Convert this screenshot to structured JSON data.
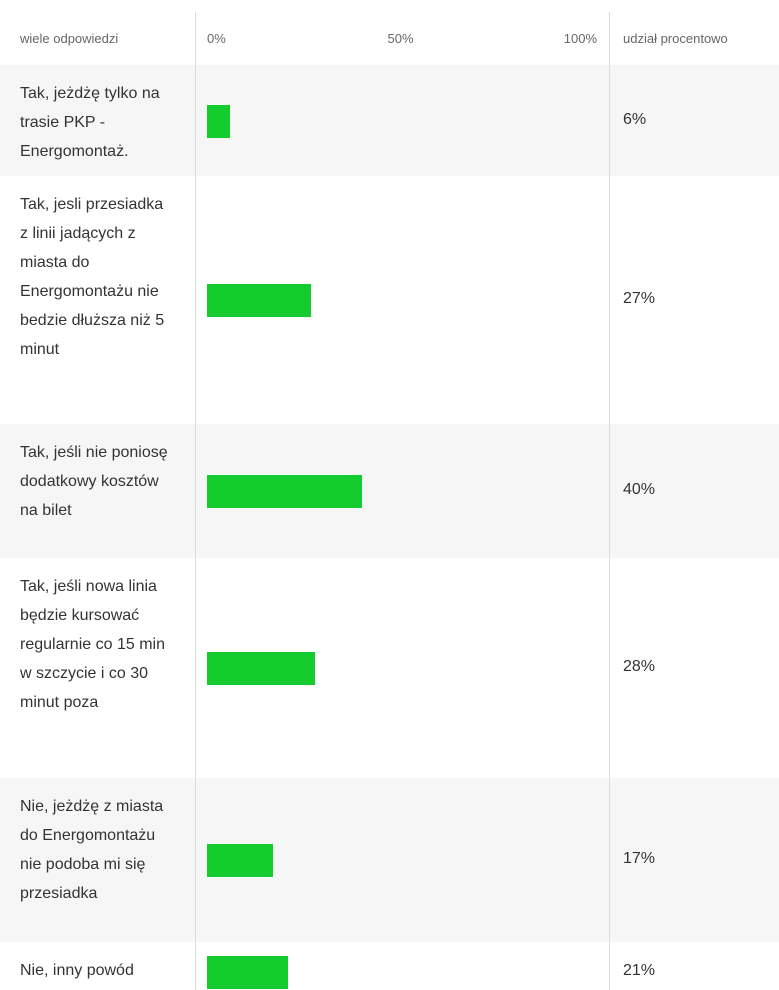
{
  "chart_data": {
    "type": "bar",
    "category_header": "wiele odpowiedzi",
    "value_header": "udział procentowo",
    "categories": [
      "Tak, jeżdżę tylko na trasie PKP - Energomontaż.",
      "Tak, jesli przesiadka z linii jadących z miasta do Energomontażu nie bedzie dłuższa niż 5 minut",
      "Tak, jeśli nie poniosę dodatkowy kosztów na bilet",
      "Tak, jeśli nowa linia będzie kursować regularnie co 15 min w szczycie i co 30 minut poza",
      "Nie, jeżdżę z miasta do Energomontażu nie podoba mi się przesiadka",
      "Nie, inny powód"
    ],
    "values": [
      6,
      27,
      40,
      28,
      17,
      21
    ],
    "value_labels": [
      "6%",
      "27%",
      "40%",
      "28%",
      "17%",
      "21%"
    ],
    "color": "#14cc2e",
    "xlim": [
      0,
      100
    ],
    "xticks": [
      {
        "value": 0,
        "label": "0%"
      },
      {
        "value": 50,
        "label": "50%"
      },
      {
        "value": 100,
        "label": "100%"
      }
    ]
  }
}
